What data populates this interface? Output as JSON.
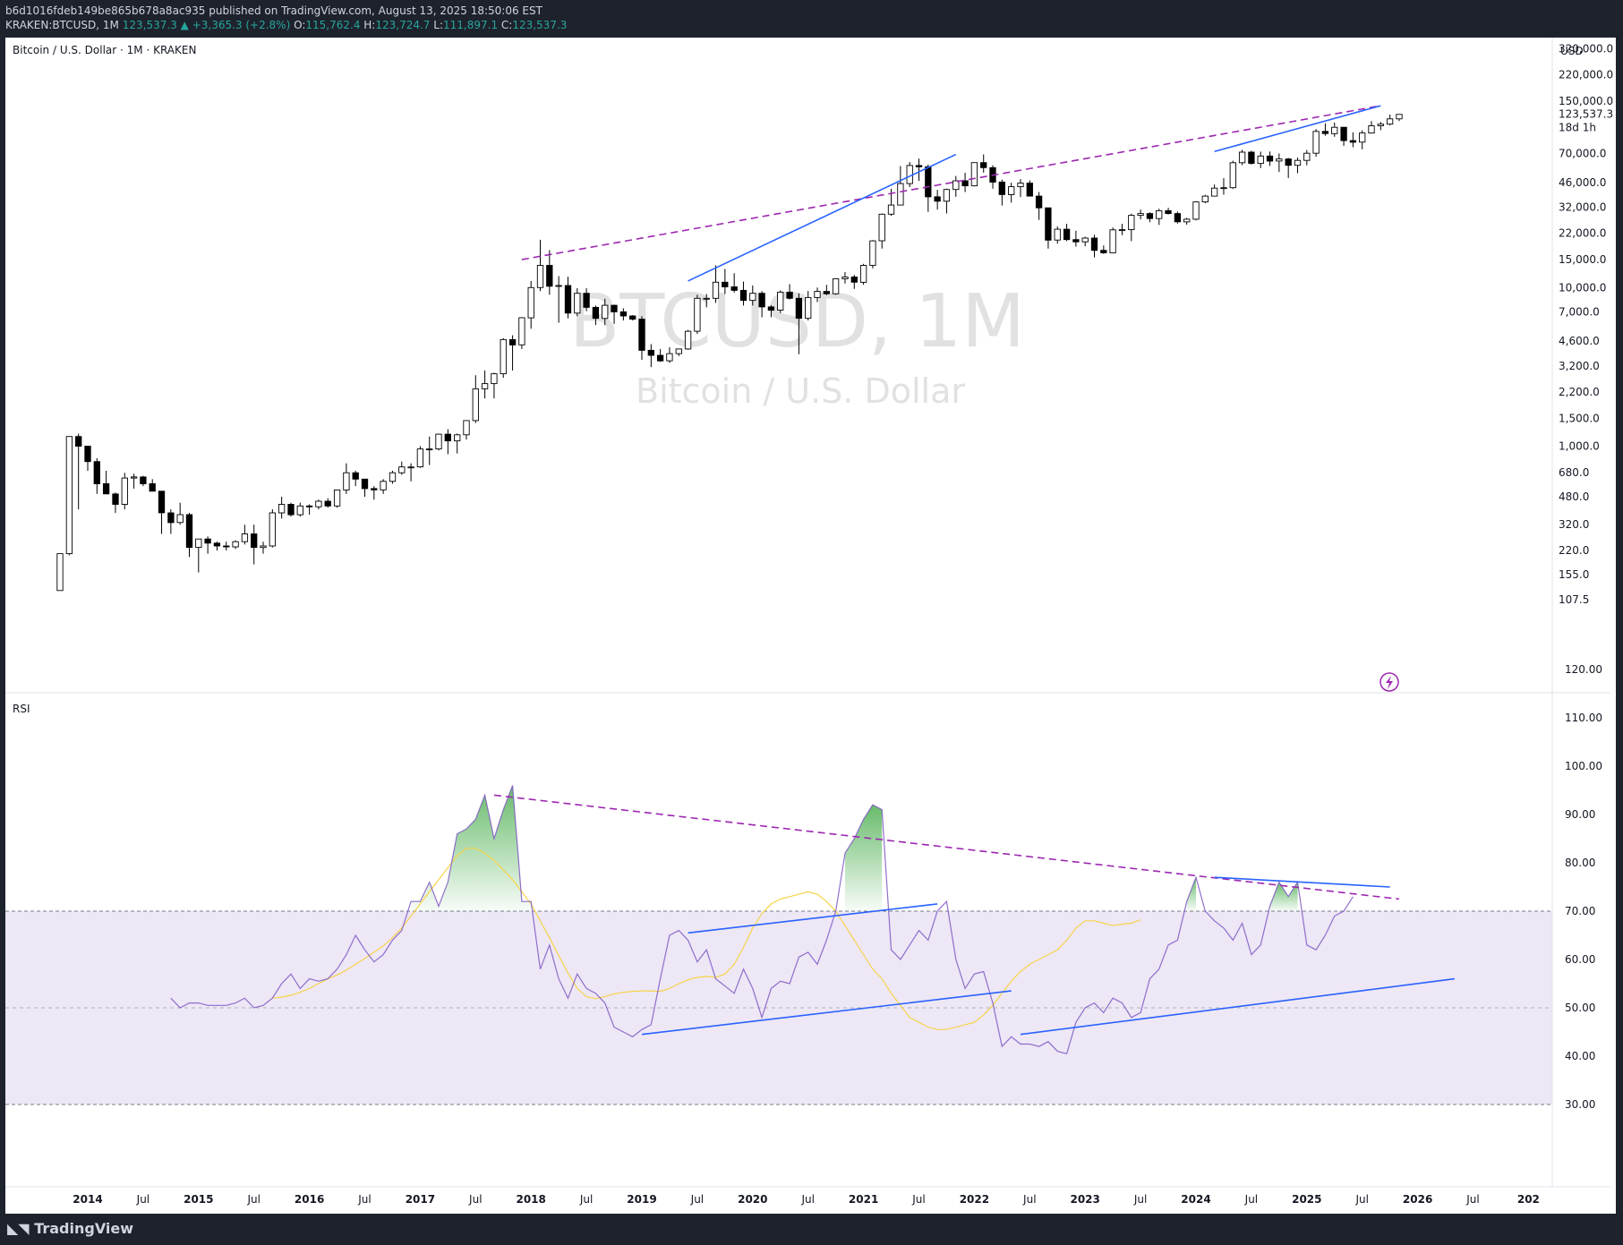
{
  "header": {
    "publisher_line": "b6d1016fdeb149be865b678a8ac935 published on TradingView.com, August 13, 2025 18:50:06 EST",
    "symbol_prefix": "KRAKEN:BTCUSD, 1M",
    "close": "123,537.3",
    "change": "▲ +3,365.3 (+2.8%)",
    "open_label": "O:",
    "open": "115,762.4",
    "high_label": "H:",
    "high": "123,724.7",
    "low_label": "L:",
    "low": "111,897.1",
    "close_label": "C:",
    "close_value": "123,537.3"
  },
  "footer": {
    "logo_text": "TradingView"
  },
  "colors": {
    "up_candle": "#ffffff",
    "down_candle": "#000000",
    "rsi_line": "#7e57c2",
    "rsi_ma": "#f7d44a",
    "trend_blue": "#2962ff",
    "trend_dashed": "#9c27b0",
    "rsi_band": "#ede7f6",
    "overbought_fill": "#4caf50"
  },
  "chart_data": [
    {
      "type": "candlestick",
      "title": "Bitcoin / U.S. Dollar · 1M · KRAKEN",
      "watermark": "BTCUSD, 1M",
      "watermark_sub": "Bitcoin / U.S. Dollar",
      "currency": "USD",
      "scale": "log",
      "ylim": [
        104,
        400000
      ],
      "y_ticks": [
        "107.5",
        "155.0",
        "220.0",
        "320.0",
        "480.0",
        "680.0",
        "1,000.0",
        "1,500.0",
        "2,200.0",
        "3,200.0",
        "4,600.0",
        "7,000.0",
        "10,000.0",
        "15,000.0",
        "22,000.0",
        "32,000.0",
        "46,000.0",
        "70,000.0",
        "150,000.0",
        "220,000.0",
        "320,000.0"
      ],
      "last_price_label": "123,537.3",
      "countdown_label": "18d 1h",
      "x_tick_labels": [
        "2014",
        "Jul",
        "2015",
        "Jul",
        "2016",
        "Jul",
        "2017",
        "Jul",
        "2018",
        "Jul",
        "2019",
        "Jul",
        "2020",
        "Jul",
        "2021",
        "Jul",
        "2022",
        "Jul",
        "2023",
        "Jul",
        "2024",
        "Jul",
        "2025",
        "Jul",
        "2026",
        "Jul",
        "202"
      ],
      "candle_start": "2013-10",
      "ohlc": [
        [
          123,
          210,
          123,
          210
        ],
        [
          210,
          1150,
          205,
          1150
        ],
        [
          1150,
          1200,
          400,
          1000
        ],
        [
          1000,
          1000,
          700,
          800
        ],
        [
          800,
          840,
          500,
          580
        ],
        [
          580,
          700,
          500,
          500
        ],
        [
          500,
          510,
          380,
          430
        ],
        [
          430,
          680,
          400,
          630
        ],
        [
          630,
          670,
          540,
          640
        ],
        [
          640,
          650,
          560,
          580
        ],
        [
          580,
          620,
          520,
          520
        ],
        [
          520,
          520,
          280,
          380
        ],
        [
          380,
          400,
          280,
          330
        ],
        [
          330,
          440,
          320,
          370
        ],
        [
          370,
          380,
          200,
          230
        ],
        [
          230,
          260,
          160,
          260
        ],
        [
          260,
          270,
          210,
          245
        ],
        [
          245,
          250,
          220,
          235
        ],
        [
          235,
          250,
          220,
          232
        ],
        [
          232,
          255,
          225,
          250
        ],
        [
          250,
          320,
          240,
          280
        ],
        [
          280,
          320,
          180,
          230
        ],
        [
          230,
          250,
          210,
          235
        ],
        [
          235,
          400,
          230,
          380
        ],
        [
          380,
          480,
          350,
          430
        ],
        [
          430,
          440,
          360,
          370
        ],
        [
          370,
          440,
          360,
          420
        ],
        [
          420,
          430,
          370,
          415
        ],
        [
          415,
          460,
          400,
          450
        ],
        [
          450,
          470,
          410,
          420
        ],
        [
          420,
          530,
          410,
          530
        ],
        [
          530,
          780,
          500,
          680
        ],
        [
          680,
          700,
          560,
          620
        ],
        [
          620,
          620,
          480,
          540
        ],
        [
          540,
          560,
          460,
          530
        ],
        [
          530,
          620,
          500,
          600
        ],
        [
          600,
          700,
          580,
          680
        ],
        [
          680,
          800,
          660,
          740
        ],
        [
          740,
          780,
          600,
          740
        ],
        [
          740,
          1000,
          730,
          960
        ],
        [
          960,
          1150,
          760,
          960
        ],
        [
          960,
          1200,
          940,
          1190
        ],
        [
          1190,
          1280,
          890,
          1080
        ],
        [
          1080,
          1200,
          900,
          1180
        ],
        [
          1180,
          1450,
          1100,
          1450
        ],
        [
          1450,
          2800,
          1400,
          2300
        ],
        [
          2300,
          3000,
          2000,
          2480
        ],
        [
          2480,
          2900,
          2000,
          2860
        ],
        [
          2860,
          4800,
          2700,
          4700
        ],
        [
          4700,
          5000,
          3000,
          4350
        ],
        [
          4350,
          6500,
          4100,
          6450
        ],
        [
          6450,
          11000,
          5500,
          10000
        ],
        [
          10000,
          20000,
          9500,
          13800
        ],
        [
          13800,
          17200,
          9000,
          10200
        ],
        [
          10200,
          11800,
          6000,
          10300
        ],
        [
          10300,
          11700,
          6400,
          6900
        ],
        [
          6900,
          9900,
          6600,
          9200
        ],
        [
          9200,
          9900,
          7100,
          7500
        ],
        [
          7500,
          7700,
          5800,
          6390
        ],
        [
          6390,
          8500,
          5800,
          7730
        ],
        [
          7730,
          7800,
          5900,
          7030
        ],
        [
          7030,
          7400,
          6200,
          6620
        ],
        [
          6620,
          6700,
          6200,
          6320
        ],
        [
          6320,
          6600,
          3500,
          4020
        ],
        [
          4020,
          4400,
          3150,
          3740
        ],
        [
          3740,
          4100,
          3400,
          3450
        ],
        [
          3450,
          4200,
          3350,
          3830
        ],
        [
          3830,
          4100,
          3700,
          4100
        ],
        [
          4100,
          5400,
          4050,
          5300
        ],
        [
          5300,
          9000,
          5100,
          8550
        ],
        [
          8550,
          9100,
          7500,
          8550
        ],
        [
          8550,
          13800,
          8000,
          10800
        ],
        [
          10800,
          13100,
          9100,
          10100
        ],
        [
          10100,
          12300,
          9300,
          9600
        ],
        [
          9600,
          10900,
          7700,
          8300
        ],
        [
          8300,
          10300,
          7700,
          9200
        ],
        [
          9200,
          9500,
          6500,
          7550
        ],
        [
          7550,
          7750,
          6500,
          7200
        ],
        [
          7200,
          9600,
          6900,
          9350
        ],
        [
          9350,
          10500,
          8400,
          8550
        ],
        [
          8550,
          9200,
          3800,
          6400
        ],
        [
          6400,
          9500,
          6200,
          8650
        ],
        [
          8650,
          10000,
          8100,
          9450
        ],
        [
          9450,
          10400,
          8950,
          9140
        ],
        [
          9140,
          11400,
          9000,
          11350
        ],
        [
          11350,
          12500,
          10600,
          11650
        ],
        [
          11650,
          12000,
          9800,
          10800
        ],
        [
          10800,
          14100,
          10400,
          13800
        ],
        [
          13800,
          19900,
          13200,
          19700
        ],
        [
          19700,
          29300,
          17600,
          28990
        ],
        [
          28990,
          41900,
          28300,
          33100
        ],
        [
          33100,
          58300,
          33000,
          45200
        ],
        [
          45200,
          61800,
          43000,
          58800
        ],
        [
          58800,
          64900,
          47000,
          57700
        ],
        [
          57700,
          59600,
          30000,
          37300
        ],
        [
          37300,
          41300,
          31000,
          35000
        ],
        [
          35000,
          42000,
          29300,
          41500
        ],
        [
          41500,
          50500,
          37300,
          47100
        ],
        [
          47100,
          52900,
          40000,
          43800
        ],
        [
          43800,
          61500,
          43400,
          61300
        ],
        [
          61300,
          69000,
          53000,
          57000
        ],
        [
          57000,
          59000,
          42000,
          46200
        ],
        [
          46200,
          47900,
          32900,
          38500
        ],
        [
          38500,
          45800,
          34300,
          43200
        ],
        [
          43200,
          48200,
          37200,
          45500
        ],
        [
          45500,
          47400,
          37700,
          37700
        ],
        [
          37700,
          40000,
          26700,
          31800
        ],
        [
          31800,
          31900,
          17600,
          19900
        ],
        [
          19900,
          24300,
          18900,
          23300
        ],
        [
          23300,
          25200,
          19600,
          20050
        ],
        [
          20050,
          22800,
          18100,
          19400
        ],
        [
          19400,
          20900,
          18200,
          20500
        ],
        [
          20500,
          21500,
          15500,
          17150
        ],
        [
          17150,
          18400,
          16300,
          16550
        ],
        [
          16550,
          23900,
          16500,
          23100
        ],
        [
          23100,
          25200,
          21400,
          23150
        ],
        [
          23150,
          29200,
          19600,
          28500
        ],
        [
          28500,
          31000,
          26900,
          29250
        ],
        [
          29250,
          29800,
          25800,
          27200
        ],
        [
          27200,
          31400,
          24800,
          30500
        ],
        [
          30500,
          31800,
          28900,
          29250
        ],
        [
          29250,
          30100,
          25300,
          25950
        ],
        [
          25950,
          27500,
          24900,
          26970
        ],
        [
          26970,
          35000,
          26500,
          34650
        ],
        [
          34650,
          38400,
          34000,
          37700
        ],
        [
          37700,
          44600,
          37600,
          42300
        ],
        [
          42300,
          48900,
          38500,
          42600
        ],
        [
          42600,
          63000,
          41800,
          61200
        ],
        [
          61200,
          73800,
          59200,
          71300
        ],
        [
          71300,
          72800,
          59600,
          60600
        ],
        [
          60600,
          71900,
          56600,
          67500
        ],
        [
          67500,
          72000,
          58400,
          62700
        ],
        [
          62700,
          70000,
          53500,
          64600
        ],
        [
          64600,
          65600,
          49000,
          58900
        ],
        [
          58900,
          66000,
          52600,
          63300
        ],
        [
          63300,
          73600,
          58900,
          70200
        ],
        [
          70200,
          99800,
          66800,
          96400
        ],
        [
          96400,
          108300,
          90500,
          93400
        ],
        [
          93400,
          109600,
          89200,
          102400
        ],
        [
          102400,
          102500,
          78200,
          84400
        ],
        [
          84400,
          95000,
          76600,
          82500
        ],
        [
          82500,
          97900,
          74400,
          94200
        ],
        [
          94200,
          111900,
          93400,
          104600
        ],
        [
          104600,
          110500,
          98200,
          107100
        ],
        [
          107100,
          123100,
          105200,
          115700
        ],
        [
          115700,
          123700,
          111900,
          123500
        ]
      ]
    },
    {
      "type": "line",
      "title": "RSI",
      "ylim": [
        22,
        125
      ],
      "y_ticks": [
        "30.00",
        "40.00",
        "50.00",
        "60.00",
        "70.00",
        "80.00",
        "90.00",
        "100.00",
        "110.00",
        "120.00"
      ],
      "band_upper": 70,
      "band_middle": 50,
      "band_lower": 30,
      "start_month": "2014-10",
      "rsi": [
        52,
        50,
        51,
        51,
        50.5,
        50.5,
        50.5,
        51,
        52,
        50,
        50.5,
        52,
        55,
        57,
        54,
        56,
        55.5,
        56,
        58,
        61,
        65,
        62,
        59.5,
        61,
        64,
        66,
        72,
        72,
        76,
        71,
        76,
        86,
        87,
        89,
        94,
        85,
        91,
        96,
        72,
        72,
        58,
        63,
        56,
        52,
        57,
        54,
        53,
        51,
        46,
        45,
        44,
        45.5,
        46.5,
        56,
        65,
        66,
        64,
        59.5,
        62,
        56,
        54.5,
        53,
        58,
        54,
        48,
        54,
        55.5,
        55,
        60.5,
        61.5,
        59,
        64,
        70,
        82,
        85,
        89,
        92,
        91,
        62,
        60,
        63,
        66,
        64,
        70,
        72,
        60,
        54,
        57,
        57.5,
        51,
        42,
        44,
        42.5,
        42.5,
        42,
        43,
        41,
        40.5,
        47,
        50,
        51,
        49,
        52,
        51,
        48,
        49,
        56,
        58,
        63,
        64,
        72,
        77,
        70,
        68,
        66.5,
        64,
        67.5,
        61,
        63,
        71,
        76,
        73,
        76,
        63,
        62,
        65,
        69,
        70,
        73
      ],
      "rsi_ma_start": "2015-09",
      "rsi_ma": [
        52,
        52.2,
        52.6,
        53.2,
        54,
        55,
        56,
        56.8,
        57.8,
        59,
        60.2,
        61.5,
        62.8,
        64.5,
        66.5,
        69,
        71.5,
        74,
        76.5,
        79,
        81.5,
        83,
        83,
        82,
        80.5,
        78.5,
        76.5,
        74,
        71.5,
        68,
        64.5,
        60.8,
        57.2,
        54,
        52.3,
        51.9,
        52.3,
        52.9,
        53.2,
        53.4,
        53.5,
        53.5,
        53.4,
        54,
        55,
        55.8,
        56.3,
        56.5,
        56.3,
        57,
        59,
        62.5,
        66.5,
        69.5,
        71.5,
        72.5,
        73,
        73.5,
        74,
        73.5,
        72,
        70,
        67,
        64,
        61,
        58,
        56,
        53,
        50.5,
        48,
        47,
        46,
        45.5,
        45.5,
        46,
        46.5,
        47,
        48.5,
        50.5,
        53,
        55.5,
        57.5,
        59,
        60,
        61,
        62,
        64,
        66.5,
        68,
        68,
        67.5,
        67,
        67.3,
        67.5,
        68.2
      ]
    }
  ]
}
